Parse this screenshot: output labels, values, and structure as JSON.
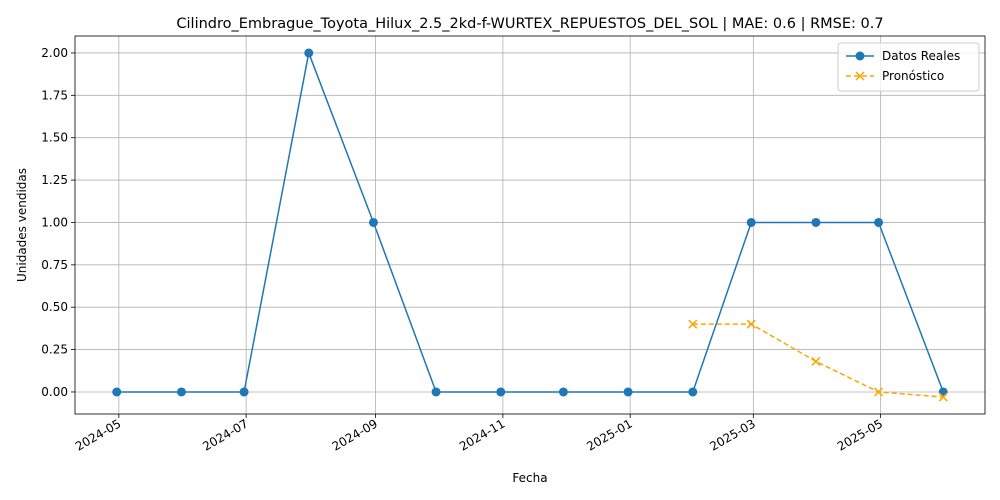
{
  "chart_data": {
    "type": "line",
    "title": "Cilindro_Embrague_Toyota_Hilux_2.5_2kd-f-WURTEX_REPUESTOS_DEL_SOL | MAE: 0.6 | RMSE: 0.7",
    "xlabel": "Fecha",
    "ylabel": "Unidades vendidas",
    "xlim": [
      "2024-04-10",
      "2025-06-20"
    ],
    "ylim": [
      -0.13,
      2.1
    ],
    "grid": true,
    "legend_position": "top-right",
    "x_ticks": [
      "2024-05",
      "2024-07",
      "2024-09",
      "2024-11",
      "2025-01",
      "2025-03",
      "2025-05"
    ],
    "y_ticks": [
      "0.00",
      "0.25",
      "0.50",
      "0.75",
      "1.00",
      "1.25",
      "1.50",
      "1.75",
      "2.00"
    ],
    "series": [
      {
        "name": "Datos Reales",
        "color": "#1f77b4",
        "style": "solid",
        "marker": "circle",
        "x": [
          "2024-04-30",
          "2024-05-31",
          "2024-06-30",
          "2024-07-31",
          "2024-08-31",
          "2024-09-30",
          "2024-10-31",
          "2024-11-30",
          "2024-12-31",
          "2025-01-31",
          "2025-02-28",
          "2025-03-31",
          "2025-04-30",
          "2025-05-31"
        ],
        "values": [
          0,
          0,
          0,
          2,
          1,
          0,
          0,
          0,
          0,
          0,
          1,
          1,
          1,
          0
        ]
      },
      {
        "name": "Pronóstico",
        "color": "#ffa500",
        "style": "dashed",
        "marker": "x",
        "x": [
          "2025-01-31",
          "2025-02-28",
          "2025-03-31",
          "2025-04-30",
          "2025-05-31"
        ],
        "values": [
          0.4,
          0.4,
          0.18,
          0.0,
          -0.03
        ]
      }
    ]
  }
}
